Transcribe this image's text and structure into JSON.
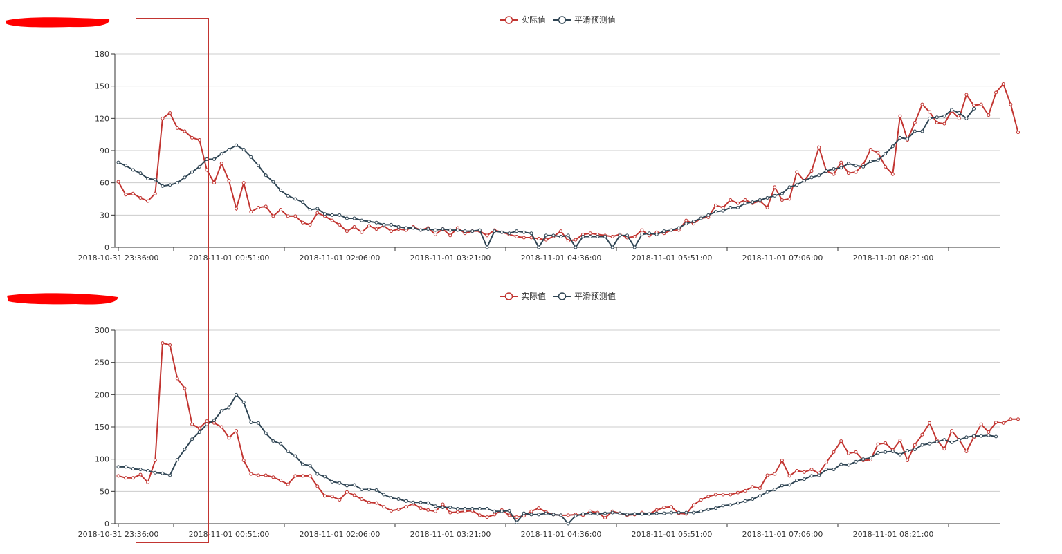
{
  "colors": {
    "actual": "#c23531",
    "predicted": "#2f4554",
    "grid": "#cccccc",
    "axis": "#333333",
    "redaction": "#ff0000",
    "highlight_box": "#c23531"
  },
  "chart_data": [
    {
      "type": "line",
      "title": "",
      "ylim": [
        0,
        180
      ],
      "yticks": [
        "0",
        "30",
        "60",
        "90",
        "120",
        "150",
        "180"
      ],
      "xtick_labels": [
        "2018-10-31 23:36:00",
        "2018-11-01 00:51:00",
        "2018-11-01 02:06:00",
        "2018-11-01 03:21:00",
        "2018-11-01 04:36:00",
        "2018-11-01 05:51:00",
        "2018-11-01 07:06:00",
        "2018-11-01 08:21:00"
      ],
      "legend": [
        "实际值",
        "平滑预测值"
      ],
      "legend_position": "top-center",
      "grid": true,
      "series": [
        {
          "name": "实际值",
          "color": "#c23531",
          "values": [
            61,
            49,
            50,
            46,
            43,
            50,
            120,
            125,
            111,
            108,
            102,
            100,
            72,
            60,
            78,
            62,
            36,
            60,
            33,
            37,
            38,
            29,
            35,
            29,
            29,
            23,
            21,
            32,
            29,
            25,
            21,
            15,
            19,
            14,
            20,
            17,
            20,
            15,
            17,
            16,
            19,
            16,
            18,
            12,
            17,
            11,
            18,
            13,
            15,
            15,
            11,
            16,
            14,
            12,
            10,
            9,
            9,
            8,
            7,
            10,
            15,
            6,
            7,
            12,
            13,
            12,
            11,
            10,
            12,
            9,
            10,
            16,
            11,
            14,
            13,
            16,
            16,
            25,
            22,
            27,
            28,
            39,
            37,
            44,
            41,
            44,
            41,
            43,
            37,
            56,
            44,
            45,
            70,
            62,
            71,
            93,
            71,
            68,
            79,
            69,
            70,
            77,
            91,
            88,
            75,
            68,
            122,
            100,
            116,
            133,
            126,
            116,
            115,
            127,
            120,
            142,
            132,
            133,
            123,
            144,
            152,
            133,
            107
          ]
        },
        {
          "name": "平滑预测值",
          "color": "#2f4554",
          "values": [
            79,
            76,
            72,
            69,
            64,
            63,
            57,
            58,
            60,
            65,
            70,
            75,
            82,
            82,
            87,
            91,
            95,
            91,
            84,
            76,
            67,
            61,
            53,
            48,
            45,
            42,
            35,
            36,
            31,
            30,
            30,
            27,
            27,
            25,
            24,
            23,
            21,
            21,
            19,
            18,
            18,
            16,
            17,
            16,
            17,
            16,
            16,
            15,
            15,
            16,
            0,
            15,
            14,
            13,
            15,
            14,
            13,
            0,
            11,
            11,
            10,
            11,
            0,
            10,
            10,
            10,
            10,
            0,
            11,
            11,
            0,
            12,
            13,
            12,
            15,
            16,
            18,
            22,
            24,
            27,
            30,
            33,
            34,
            37,
            37,
            41,
            42,
            44,
            46,
            48,
            50,
            56,
            58,
            62,
            65,
            67,
            71,
            73,
            74,
            78,
            76,
            75,
            80,
            81,
            87,
            94,
            102,
            101,
            108,
            108,
            120,
            121,
            122,
            128,
            125,
            120,
            129
          ]
        }
      ]
    },
    {
      "type": "line",
      "title": "",
      "ylim": [
        0,
        300
      ],
      "yticks": [
        "0",
        "50",
        "100",
        "150",
        "200",
        "250",
        "300"
      ],
      "xtick_labels": [
        "2018-10-31 23:36:00",
        "2018-11-01 00:51:00",
        "2018-11-01 02:06:00",
        "2018-11-01 03:21:00",
        "2018-11-01 04:36:00",
        "2018-11-01 05:51:00",
        "2018-11-01 07:06:00",
        "2018-11-01 08:21:00"
      ],
      "legend": [
        "实际值",
        "平滑预测值"
      ],
      "legend_position": "top-center",
      "grid": true,
      "series": [
        {
          "name": "实际值",
          "color": "#c23531",
          "values": [
            74,
            71,
            71,
            76,
            64,
            98,
            280,
            277,
            225,
            210,
            154,
            148,
            159,
            156,
            150,
            133,
            144,
            98,
            77,
            75,
            75,
            72,
            67,
            61,
            74,
            74,
            74,
            58,
            43,
            42,
            37,
            49,
            44,
            38,
            33,
            32,
            26,
            20,
            22,
            26,
            31,
            24,
            21,
            19,
            30,
            17,
            18,
            19,
            20,
            13,
            10,
            14,
            21,
            13,
            10,
            12,
            19,
            24,
            18,
            14,
            13,
            13,
            14,
            13,
            19,
            17,
            9,
            19,
            16,
            13,
            14,
            17,
            15,
            21,
            25,
            26,
            16,
            15,
            29,
            37,
            42,
            45,
            45,
            45,
            48,
            51,
            57,
            55,
            75,
            77,
            98,
            74,
            82,
            80,
            84,
            78,
            95,
            111,
            128,
            109,
            111,
            98,
            99,
            123,
            125,
            114,
            129,
            98,
            122,
            138,
            156,
            129,
            116,
            144,
            130,
            112,
            134,
            154,
            142,
            157,
            156,
            162,
            162
          ]
        },
        {
          "name": "平滑预测值",
          "color": "#2f4554",
          "values": [
            88,
            88,
            85,
            84,
            82,
            79,
            78,
            75,
            99,
            115,
            131,
            142,
            154,
            160,
            175,
            180,
            200,
            188,
            157,
            156,
            140,
            128,
            124,
            112,
            105,
            92,
            90,
            77,
            73,
            65,
            63,
            59,
            60,
            53,
            53,
            52,
            45,
            40,
            38,
            35,
            33,
            33,
            32,
            27,
            25,
            25,
            23,
            23,
            23,
            23,
            23,
            19,
            19,
            20,
            2,
            16,
            14,
            14,
            16,
            14,
            13,
            0,
            12,
            15,
            16,
            15,
            16,
            17,
            16,
            14,
            15,
            15,
            15,
            16,
            16,
            17,
            17,
            17,
            17,
            19,
            22,
            24,
            28,
            29,
            32,
            35,
            38,
            43,
            49,
            53,
            59,
            60,
            67,
            69,
            74,
            75,
            84,
            84,
            92,
            91,
            96,
            100,
            102,
            110,
            111,
            112,
            107,
            113,
            115,
            122,
            124,
            127,
            130,
            126,
            130,
            134,
            136,
            136,
            137,
            135
          ]
        }
      ]
    }
  ]
}
